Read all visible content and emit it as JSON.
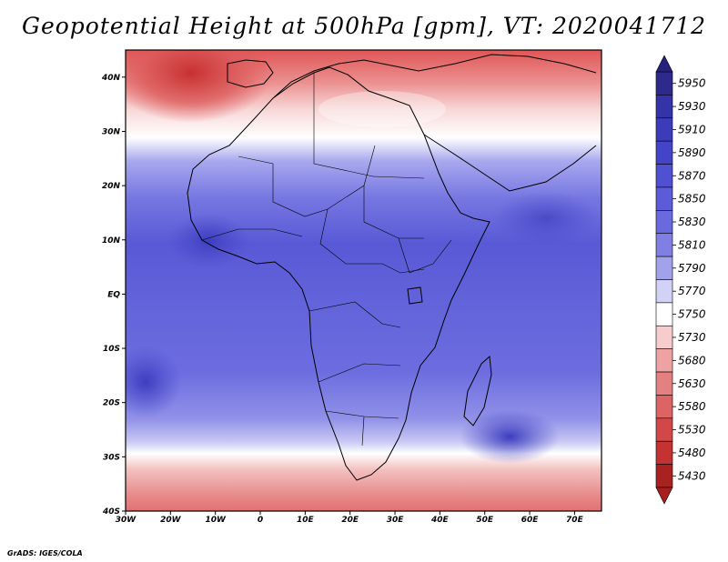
{
  "title": "Geopotential Height at 500hPa [gpm], VT: 2020041712",
  "credit": "GrADS: IGES/COLA",
  "map": {
    "lon_range": [
      -30,
      76
    ],
    "lat_range": [
      -40,
      45
    ],
    "lon_ticks": [
      {
        "lon": -30,
        "label": "30W"
      },
      {
        "lon": -20,
        "label": "20W"
      },
      {
        "lon": -10,
        "label": "10W"
      },
      {
        "lon": 0,
        "label": "0"
      },
      {
        "lon": 10,
        "label": "10E"
      },
      {
        "lon": 20,
        "label": "20E"
      },
      {
        "lon": 30,
        "label": "30E"
      },
      {
        "lon": 40,
        "label": "40E"
      },
      {
        "lon": 50,
        "label": "50E"
      },
      {
        "lon": 60,
        "label": "60E"
      },
      {
        "lon": 70,
        "label": "70E"
      }
    ],
    "lat_ticks": [
      {
        "lat": 40,
        "label": "40N"
      },
      {
        "lat": 30,
        "label": "30N"
      },
      {
        "lat": 20,
        "label": "20N"
      },
      {
        "lat": 10,
        "label": "10N"
      },
      {
        "lat": 0,
        "label": "EQ"
      },
      {
        "lat": -10,
        "label": "10S"
      },
      {
        "lat": -20,
        "label": "20S"
      },
      {
        "lat": -30,
        "label": "30S"
      },
      {
        "lat": -40,
        "label": "40S"
      }
    ]
  },
  "colorbar": {
    "levels": [
      "5950",
      "5930",
      "5910",
      "5890",
      "5870",
      "5850",
      "5830",
      "5810",
      "5790",
      "5770",
      "5750",
      "5730",
      "5680",
      "5630",
      "5580",
      "5530",
      "5480",
      "5430"
    ],
    "colors": [
      "#2d2a8c",
      "#3533a8",
      "#3c3cbb",
      "#4444c8",
      "#5050d2",
      "#5c5cd8",
      "#6a6ade",
      "#8080e4",
      "#a2a2ec",
      "#d2d2f6",
      "#ffffff",
      "#f6cccc",
      "#eea2a2",
      "#e48080",
      "#dc6464",
      "#d24848",
      "#c43232",
      "#a82222"
    ],
    "top_arrow_color": "#26217e",
    "bottom_arrow_color": "#a81e1e"
  }
}
